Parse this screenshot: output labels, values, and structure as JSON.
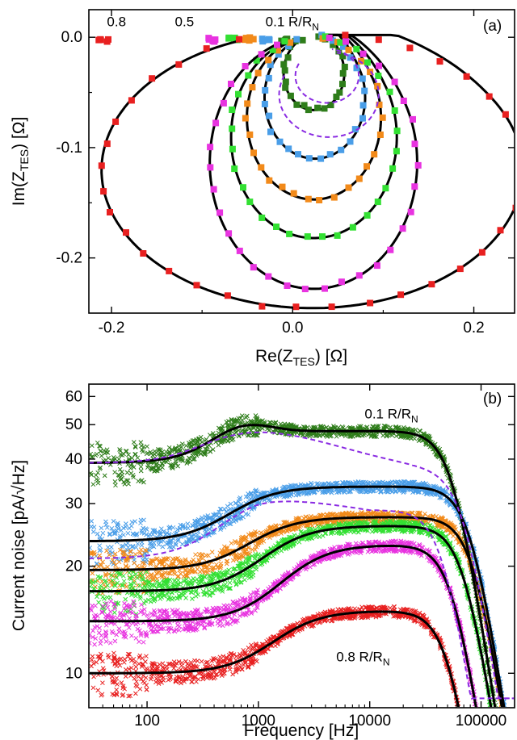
{
  "chart_data": [
    {
      "type": "scatter",
      "panel_label": "(a)",
      "xlabel": {
        "main": "Re(Z",
        "sub": "TES",
        "tail": ") [Ω]"
      },
      "ylabel": {
        "main": "Im(Z",
        "sub": "TES",
        "tail": ") [Ω]"
      },
      "xlim": [
        -0.225,
        0.245
      ],
      "ylim": [
        -0.25,
        0.025
      ],
      "xticks": [
        {
          "v": -0.2,
          "label": "-0.2"
        },
        {
          "v": 0.0,
          "label": "0.0"
        },
        {
          "v": 0.2,
          "label": "0.2"
        }
      ],
      "yticks": [
        {
          "v": 0.0,
          "label": "0.0"
        },
        {
          "v": -0.1,
          "label": "-0.1"
        },
        {
          "v": -0.2,
          "label": "-0.2"
        }
      ],
      "annotations": [
        {
          "text": "0.8",
          "x": -0.205,
          "y": 0.01
        },
        {
          "text": "0.5",
          "x": -0.13,
          "y": 0.01
        },
        {
          "text": "0.1 R/R",
          "sub": "N",
          "x": -0.03,
          "y": 0.01
        }
      ],
      "series": [
        {
          "color": "#2e7d1a",
          "cx": 0.0235,
          "cy": -0.0325,
          "r": 0.0335
        },
        {
          "color": "#4a9ee8",
          "cx": 0.0245,
          "cy": -0.0545,
          "r": 0.0555
        },
        {
          "color": "#f28a1a",
          "cx": 0.0235,
          "cy": -0.073,
          "r": 0.074
        },
        {
          "color": "#33e033",
          "cx": 0.0235,
          "cy": -0.0905,
          "r": 0.0915
        },
        {
          "color": "#e833e0",
          "cx": 0.023,
          "cy": -0.1135,
          "r": 0.1145
        },
        {
          "color": "#e82020",
          "cx": 0.0215,
          "cy": -0.1205,
          "r": 0.2325,
          "ry": 0.125
        }
      ],
      "model_curve_color": "#000000",
      "dashed_curve_color": "#8a2be2"
    },
    {
      "type": "scatter",
      "panel_label": "(b)",
      "xlabel": {
        "main": "Frequency [Hz]"
      },
      "ylabel": {
        "main": "Current noise [pA/√Hz]"
      },
      "xscale": "log",
      "yscale": "log",
      "xlim": [
        30,
        200000
      ],
      "ylim": [
        8,
        65
      ],
      "xticks": [
        {
          "v": 100,
          "label": "100"
        },
        {
          "v": 1000,
          "label": "1000"
        },
        {
          "v": 10000,
          "label": "10000"
        },
        {
          "v": 100000,
          "label": "100000"
        }
      ],
      "yticks": [
        {
          "v": 10,
          "label": "10"
        },
        {
          "v": 20,
          "label": "20"
        },
        {
          "v": 30,
          "label": "30"
        },
        {
          "v": 40,
          "label": "40"
        },
        {
          "v": 50,
          "label": "50"
        },
        {
          "v": 60,
          "label": "60"
        }
      ],
      "annotations": [
        {
          "text": "0.1 R/R",
          "sub": "N",
          "x": 9000,
          "y": 52
        },
        {
          "text": "0.8 R/R",
          "sub": "N",
          "x": 5000,
          "y": 10.8
        }
      ],
      "series": [
        {
          "color": "#2e7d1a",
          "a": 39,
          "b": 48,
          "f1": 400,
          "fc": 55000,
          "bump": 1.08,
          "fb": 700
        },
        {
          "color": "#4a9ee8",
          "a": 23.5,
          "b": 33.5,
          "f1": 600,
          "fc": 80000,
          "bump": 1.0,
          "fb": 0
        },
        {
          "color": "#f28a1a",
          "a": 19.5,
          "b": 27.5,
          "f1": 900,
          "fc": 85000,
          "bump": 1.0,
          "fb": 0
        },
        {
          "color": "#33e033",
          "a": 17,
          "b": 26,
          "f1": 1200,
          "fc": 70000,
          "bump": 1.0,
          "fb": 0
        },
        {
          "color": "#e833e0",
          "a": 14,
          "b": 23,
          "f1": 1800,
          "fc": 55000,
          "bump": 1.0,
          "fb": 0
        },
        {
          "color": "#e82020",
          "a": 10,
          "b": 15,
          "f1": 1500,
          "fc": 50000,
          "bump": 1.0,
          "fb": 0
        }
      ],
      "model_curve_color": "#000000",
      "dashed_curve_color": "#8a2be2"
    }
  ]
}
